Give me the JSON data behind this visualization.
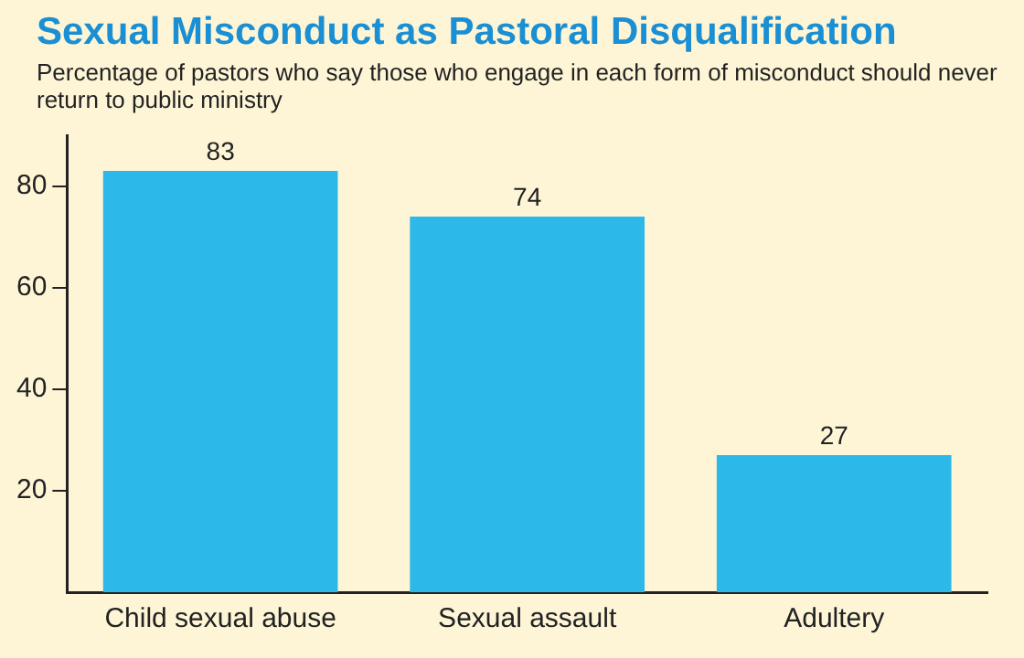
{
  "chart_data": {
    "type": "bar",
    "title": "Sexual Misconduct as Pastoral Disqualification",
    "subtitle": "Percentage of pastors who say those who engage in each form of misconduct should never return to public ministry",
    "categories": [
      "Child sexual abuse",
      "Sexual assault",
      "Adultery"
    ],
    "values": [
      83,
      74,
      27
    ],
    "color": "#2db8ea",
    "ylim": [
      0,
      90
    ],
    "yticks": [
      20,
      40,
      60,
      80
    ],
    "grid": false,
    "data_labels": true
  }
}
